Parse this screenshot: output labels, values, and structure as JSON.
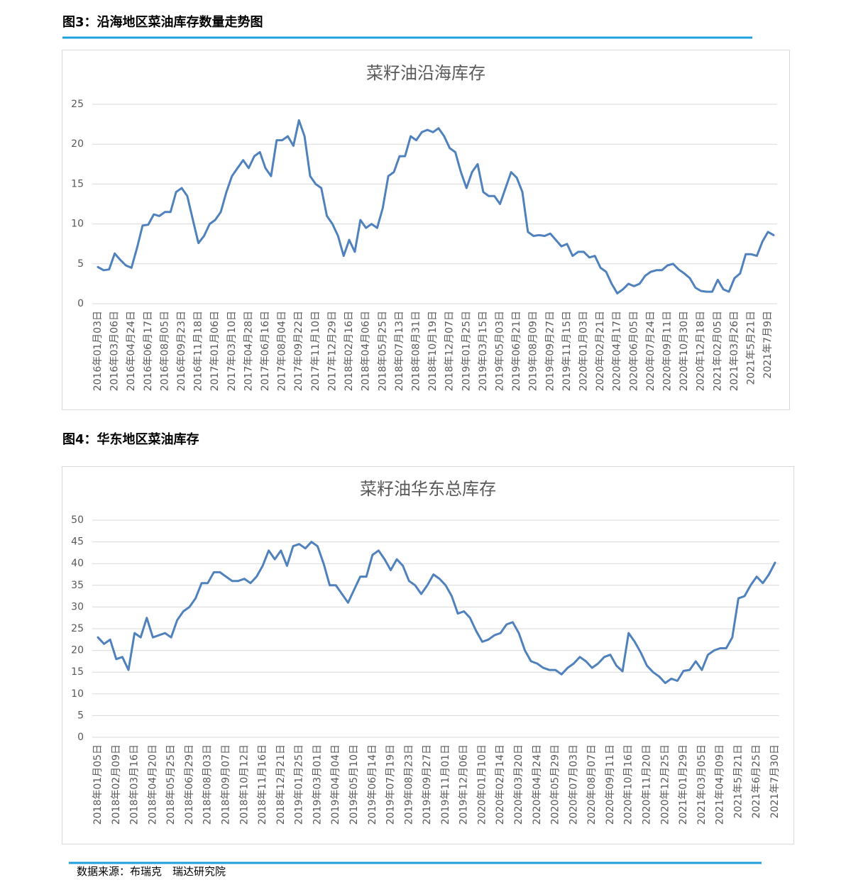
{
  "headings": [
    "图3：沿海地区菜油库存数量走势图",
    "图4：华东地区菜油库存"
  ],
  "source": "数据来源：布瑞克　瑞达研究院",
  "chart_data": [
    {
      "type": "line",
      "title": "菜籽油沿海库存",
      "color": "#4f81bd",
      "grid": true,
      "ylim": [
        0,
        25
      ],
      "yticks": [
        0,
        5,
        10,
        15,
        20,
        25
      ],
      "categories": [
        "2016年01月03日",
        null,
        null,
        "2016年03月06日",
        null,
        null,
        "2016年04月24日",
        null,
        null,
        "2016年06月17日",
        null,
        null,
        "2016年08月05日",
        null,
        null,
        "2016年09月23日",
        null,
        null,
        "2016年11月18日",
        null,
        null,
        "2017年01月06日",
        null,
        null,
        "2017年03月10日",
        null,
        null,
        "2017年04月28日",
        null,
        null,
        "2017年06月16日",
        null,
        null,
        "2017年08月04日",
        null,
        null,
        "2017年09月22日",
        null,
        null,
        "2017年11月10日",
        null,
        null,
        "2017年12月29日",
        null,
        null,
        "2018年02月16日",
        null,
        null,
        "2018年04月06日",
        null,
        null,
        "2018年05月25日",
        null,
        null,
        "2018年07月13日",
        null,
        null,
        "2018年08月31日",
        null,
        null,
        "2018年10月19日",
        null,
        null,
        "2018年12月07日",
        null,
        null,
        "2019年01月25日",
        null,
        null,
        "2019年03月15日",
        null,
        null,
        "2019年05月03日",
        null,
        null,
        "2019年06月21日",
        null,
        null,
        "2019年08月09日",
        null,
        null,
        "2019年09月27日",
        null,
        null,
        "2019年11月15日",
        null,
        null,
        "2020年01月03日",
        null,
        null,
        "2020年02月21日",
        null,
        null,
        "2020年04月17日",
        null,
        null,
        "2020年06月05日",
        null,
        null,
        "2020年07月24日",
        null,
        null,
        "2020年09月11日",
        null,
        null,
        "2020年10月30日",
        null,
        null,
        "2020年12月18日",
        null,
        null,
        "2021年02月05日",
        null,
        null,
        "2021年03月26日",
        null,
        null,
        "2021年5月21日",
        null,
        null,
        "2021年7月9日",
        null
      ],
      "values": [
        4.6,
        4.2,
        4.3,
        6.3,
        5.5,
        4.8,
        4.5,
        7.0,
        9.8,
        9.9,
        11.2,
        11.0,
        11.5,
        11.5,
        14.0,
        14.5,
        13.5,
        10.5,
        7.6,
        8.5,
        10.0,
        10.5,
        11.5,
        14.0,
        16.0,
        17.0,
        18.0,
        17.0,
        18.5,
        19.0,
        17.0,
        16.0,
        20.5,
        20.5,
        21.0,
        19.8,
        23.0,
        21.0,
        16.0,
        15.0,
        14.5,
        11.0,
        10.0,
        8.5,
        6.0,
        8.0,
        6.5,
        10.5,
        9.5,
        10.0,
        9.5,
        12.0,
        16.0,
        16.5,
        18.5,
        18.5,
        21.0,
        20.5,
        21.5,
        21.8,
        21.5,
        22.0,
        21.0,
        19.5,
        19.0,
        16.5,
        14.5,
        16.5,
        17.5,
        14.0,
        13.5,
        13.5,
        12.5,
        14.5,
        16.5,
        15.8,
        14.0,
        9.0,
        8.5,
        8.6,
        8.5,
        8.8,
        8.0,
        7.2,
        7.5,
        6.0,
        6.5,
        6.5,
        5.8,
        6.0,
        4.5,
        4.0,
        2.5,
        1.3,
        1.8,
        2.5,
        2.2,
        2.5,
        3.5,
        4.0,
        4.2,
        4.2,
        4.8,
        5.0,
        4.3,
        3.8,
        3.2,
        2.0,
        1.6,
        1.5,
        1.5,
        3.0,
        1.8,
        1.5,
        3.2,
        3.8,
        6.2,
        6.2,
        6.0,
        7.8,
        9.0,
        8.6
      ]
    },
    {
      "type": "line",
      "title": "菜籽油华东总库存",
      "color": "#4f81bd",
      "grid": true,
      "ylim": [
        0,
        50
      ],
      "yticks": [
        0,
        5,
        10,
        15,
        20,
        25,
        30,
        35,
        40,
        45,
        50
      ],
      "categories": [
        "2018年01月05日",
        null,
        null,
        "2018年02月09日",
        null,
        null,
        "2018年03月16日",
        null,
        null,
        "2018年04月20日",
        null,
        null,
        "2018年05月25日",
        null,
        null,
        "2018年06月29日",
        null,
        null,
        "2018年08月03日",
        null,
        null,
        "2018年09月07日",
        null,
        null,
        "2018年10月12日",
        null,
        null,
        "2018年11月16日",
        null,
        null,
        "2018年12月21日",
        null,
        null,
        "2019年01月25日",
        null,
        null,
        "2019年03月01日",
        null,
        null,
        "2019年04月04日",
        null,
        null,
        "2019年05月10日",
        null,
        null,
        "2019年06月14日",
        null,
        null,
        "2019年07月19日",
        null,
        null,
        "2019年08月23日",
        null,
        null,
        "2019年09月27日",
        null,
        null,
        "2019年11月01日",
        null,
        null,
        "2019年12月06日",
        null,
        null,
        "2020年01月10日",
        null,
        null,
        "2020年02月14日",
        null,
        null,
        "2020年03月20日",
        null,
        null,
        "2020年04月24日",
        null,
        null,
        "2020年05月29日",
        null,
        null,
        "2020年07月03日",
        null,
        null,
        "2020年08月07日",
        null,
        null,
        "2020年09月11日",
        null,
        null,
        "2020年10月16日",
        null,
        null,
        "2020年11月20日",
        null,
        null,
        "2020年12月25日",
        null,
        null,
        "2021年01月29日",
        null,
        null,
        "2021年03月05日",
        null,
        null,
        "2021年04月09日",
        null,
        null,
        "2021年5月21日",
        null,
        null,
        "2021年6月25日",
        null,
        null,
        "2021年7月30日"
      ],
      "values": [
        23,
        21.5,
        22.5,
        18,
        18.5,
        15.5,
        24,
        23,
        27.5,
        23,
        23.5,
        24,
        23,
        27,
        29,
        30,
        32,
        35.5,
        35.5,
        38,
        38,
        37,
        36,
        36,
        36.5,
        35.5,
        37,
        39.5,
        43,
        41,
        43,
        39.5,
        44,
        44.5,
        43.5,
        45,
        44,
        40,
        35,
        35,
        33,
        31,
        34,
        37,
        37,
        42,
        43,
        41,
        38.5,
        41,
        39.5,
        36,
        35,
        33,
        35,
        37.5,
        36.5,
        35,
        32.5,
        28.5,
        29,
        27.5,
        24.5,
        22,
        22.5,
        23.5,
        24,
        26,
        26.5,
        24,
        20,
        17.5,
        17,
        16,
        15.5,
        15.5,
        14.5,
        16,
        17,
        18.5,
        17.5,
        16,
        17,
        18.5,
        19,
        16.5,
        15.2,
        24,
        22,
        19.5,
        16.5,
        15,
        14,
        12.5,
        13.5,
        13,
        15.3,
        15.5,
        17.5,
        15.5,
        19,
        20,
        20.5,
        20.5,
        23,
        32,
        32.5,
        35,
        37,
        35.5,
        37.5,
        40.2
      ]
    }
  ]
}
